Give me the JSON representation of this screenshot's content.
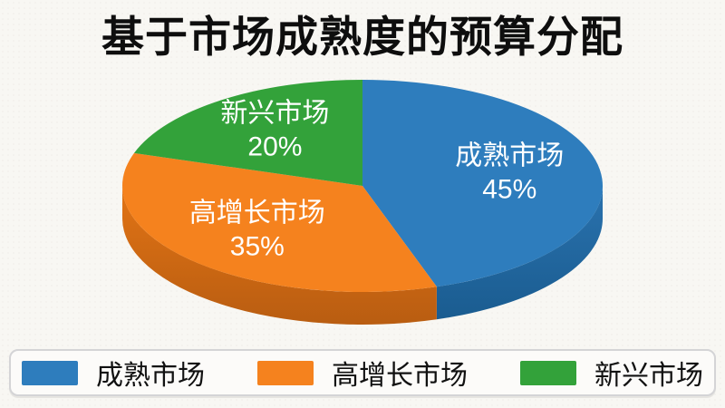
{
  "title": "基于市场成熟度的预算分配",
  "chart_data": {
    "type": "pie",
    "style": "3d-extruded",
    "unit": "%",
    "start_angle": "top",
    "direction": "clockwise",
    "legend_position": "bottom",
    "value_label_color": "#ffffff",
    "slices": [
      {
        "key": "mature-market",
        "label": "成熟市场",
        "value": 45,
        "pct_label": "45%",
        "color": "#2e7dbd",
        "side_color": "#2a72ae",
        "side_color_dark": "#1a5c90"
      },
      {
        "key": "high-growth-market",
        "label": "高增长市场",
        "value": 35,
        "pct_label": "35%",
        "color": "#f5821e",
        "side_color": "#e27415",
        "side_color_dark": "#b95d11"
      },
      {
        "key": "emerging-market",
        "label": "新兴市场",
        "value": 20,
        "pct_label": "20%",
        "color": "#33a23a",
        "side_color": "#2a8530",
        "side_color_dark": "#226b27"
      }
    ]
  },
  "colors": {
    "background": "#f8f7f3",
    "title": "#0e0e0e",
    "legend_border": "#d4d4d6",
    "legend_background": "#fcfbf9",
    "legend_text": "#111111"
  }
}
